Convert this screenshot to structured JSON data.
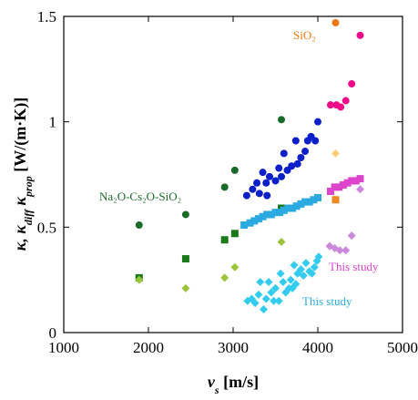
{
  "chart_data": {
    "type": "scatter",
    "xlim": [
      1000,
      5000
    ],
    "ylim": [
      0,
      1.5
    ],
    "x_ticks": [
      1000,
      2000,
      3000,
      4000,
      5000
    ],
    "y_ticks": [
      0,
      0.5,
      1,
      1.5
    ],
    "x_tick_labels": [
      "1000",
      "2000",
      "3000",
      "4000",
      "5000"
    ],
    "y_tick_labels": [
      "0",
      "0.5",
      "1",
      "1.5"
    ],
    "xlabel_symbol": "v",
    "xlabel_sub": "s",
    "xlabel_units": " [m/s]",
    "ylabel_symbols": "κ, κ",
    "ylabel_sub1": "diff",
    "ylabel_mid": " κ",
    "ylabel_sub2": "prop",
    "ylabel_units": " [W/(m·K)]",
    "grid": false,
    "legend": "none",
    "annotations": {
      "sio2": "SiO₂",
      "nacs": "Na₂O-Cs₂O-SiO₂",
      "study_magenta": "This study",
      "study_cyan": "This study"
    },
    "series": [
      {
        "color": "#1a6b2a",
        "marker": "circle",
        "points": [
          [
            1890,
            0.51
          ],
          [
            2440,
            0.56
          ],
          [
            2900,
            0.69
          ],
          [
            3020,
            0.77
          ],
          [
            3570,
            1.01
          ]
        ]
      },
      {
        "color": "#1a7a1a",
        "marker": "square",
        "points": [
          [
            1890,
            0.26
          ],
          [
            2440,
            0.35
          ],
          [
            2900,
            0.44
          ],
          [
            3020,
            0.47
          ],
          [
            3570,
            0.59
          ]
        ]
      },
      {
        "color": "#9bc43a",
        "marker": "diamond",
        "points": [
          [
            1890,
            0.25
          ],
          [
            2440,
            0.21
          ],
          [
            2900,
            0.26
          ],
          [
            3020,
            0.31
          ],
          [
            3570,
            0.43
          ]
        ]
      },
      {
        "color": "#0a1fc8",
        "marker": "circle",
        "points": [
          [
            3160,
            0.65
          ],
          [
            3230,
            0.68
          ],
          [
            3280,
            0.71
          ],
          [
            3310,
            0.66
          ],
          [
            3350,
            0.76
          ],
          [
            3390,
            0.71
          ],
          [
            3400,
            0.65
          ],
          [
            3430,
            0.74
          ],
          [
            3500,
            0.72
          ],
          [
            3540,
            0.78
          ],
          [
            3570,
            0.74
          ],
          [
            3600,
            0.85
          ],
          [
            3640,
            0.77
          ],
          [
            3690,
            0.79
          ],
          [
            3740,
            0.91
          ],
          [
            3760,
            0.8
          ],
          [
            3800,
            0.83
          ],
          [
            3850,
            0.86
          ],
          [
            3880,
            0.91
          ],
          [
            3920,
            0.93
          ],
          [
            3970,
            0.91
          ],
          [
            4000,
            1.0
          ]
        ]
      },
      {
        "color": "#2aaae0",
        "marker": "square",
        "points": [
          [
            3130,
            0.51
          ],
          [
            3200,
            0.52
          ],
          [
            3250,
            0.53
          ],
          [
            3300,
            0.54
          ],
          [
            3350,
            0.55
          ],
          [
            3400,
            0.56
          ],
          [
            3450,
            0.56
          ],
          [
            3500,
            0.57
          ],
          [
            3550,
            0.57
          ],
          [
            3600,
            0.58
          ],
          [
            3650,
            0.59
          ],
          [
            3700,
            0.59
          ],
          [
            3750,
            0.6
          ],
          [
            3800,
            0.61
          ],
          [
            3850,
            0.62
          ],
          [
            3900,
            0.62
          ],
          [
            3950,
            0.63
          ],
          [
            4000,
            0.64
          ]
        ]
      },
      {
        "color": "#33ccee",
        "marker": "diamond",
        "points": [
          [
            3170,
            0.15
          ],
          [
            3220,
            0.16
          ],
          [
            3260,
            0.14
          ],
          [
            3300,
            0.18
          ],
          [
            3320,
            0.24
          ],
          [
            3360,
            0.11
          ],
          [
            3390,
            0.16
          ],
          [
            3420,
            0.24
          ],
          [
            3450,
            0.19
          ],
          [
            3480,
            0.15
          ],
          [
            3500,
            0.21
          ],
          [
            3540,
            0.15
          ],
          [
            3560,
            0.28
          ],
          [
            3590,
            0.24
          ],
          [
            3620,
            0.19
          ],
          [
            3660,
            0.21
          ],
          [
            3680,
            0.25
          ],
          [
            3700,
            0.21
          ],
          [
            3720,
            0.32
          ],
          [
            3740,
            0.23
          ],
          [
            3760,
            0.28
          ],
          [
            3800,
            0.3
          ],
          [
            3830,
            0.27
          ],
          [
            3860,
            0.33
          ],
          [
            3900,
            0.29
          ],
          [
            3930,
            0.28
          ],
          [
            3960,
            0.31
          ],
          [
            3990,
            0.34
          ],
          [
            4010,
            0.36
          ]
        ]
      },
      {
        "color": "#ee0a88",
        "marker": "circle",
        "points": [
          [
            4150,
            1.08
          ],
          [
            4220,
            1.08
          ],
          [
            4270,
            1.07
          ],
          [
            4330,
            1.1
          ],
          [
            4400,
            1.18
          ],
          [
            4500,
            1.41
          ]
        ]
      },
      {
        "color": "#dd44cc",
        "marker": "square",
        "points": [
          [
            4150,
            0.67
          ],
          [
            4200,
            0.69
          ],
          [
            4250,
            0.69
          ],
          [
            4300,
            0.7
          ],
          [
            4350,
            0.71
          ],
          [
            4400,
            0.72
          ],
          [
            4450,
            0.72
          ],
          [
            4500,
            0.73
          ]
        ]
      },
      {
        "color": "#cc88dd",
        "marker": "diamond",
        "points": [
          [
            4140,
            0.41
          ],
          [
            4200,
            0.4
          ],
          [
            4260,
            0.39
          ],
          [
            4330,
            0.39
          ],
          [
            4400,
            0.46
          ],
          [
            4500,
            0.68
          ]
        ]
      },
      {
        "color": "#ee7711",
        "marker": "circle",
        "points": [
          [
            4210,
            1.47
          ]
        ]
      },
      {
        "color": "#ee8822",
        "marker": "square",
        "points": [
          [
            4210,
            0.63
          ]
        ]
      },
      {
        "color": "#ffcc77",
        "marker": "diamond",
        "points": [
          [
            4210,
            0.85
          ]
        ]
      }
    ]
  }
}
